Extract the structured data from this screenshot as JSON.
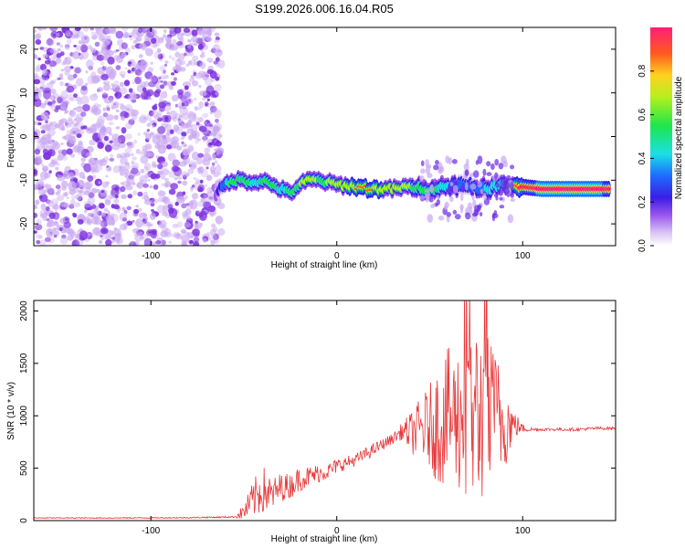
{
  "title": "S199.2026.006.16.04.R05",
  "colors": {
    "signal_line": "#e8383a",
    "speckle_dark": "#7b2fe0",
    "speckle_light": "#c9a8f2"
  },
  "colorbar": {
    "label": "Normalized spectral amplitude",
    "ticks": [
      "0.0",
      "0.2",
      "0.4",
      "0.6",
      "0.8"
    ],
    "tick_values": [
      0.0,
      0.2,
      0.4,
      0.6,
      0.8
    ],
    "range": [
      0,
      1
    ]
  },
  "chart_data": [
    {
      "type": "heatmap",
      "title": "S199.2026.006.16.04.R05",
      "xlabel": "Height of straight line (km)",
      "ylabel": "Frequency (Hz)",
      "xlim": [
        -163,
        150
      ],
      "ylim": [
        -25,
        25
      ],
      "xticks": [
        -100,
        0,
        100
      ],
      "xtick_labels": [
        "-100",
        "0",
        "100"
      ],
      "yticks": [
        -20,
        -10,
        0,
        10,
        20
      ],
      "ytick_labels": [
        "-20",
        "-10",
        "0",
        "10",
        "20"
      ],
      "noise_region_x": [
        -163,
        -65
      ],
      "signal_track": {
        "x": [
          -65,
          -60,
          -55,
          -50,
          -45,
          -40,
          -35,
          -30,
          -25,
          -20,
          -15,
          -10,
          -5,
          0,
          10,
          20,
          30,
          40,
          50,
          60,
          70,
          80,
          90,
          100,
          110,
          120,
          130,
          140,
          147
        ],
        "frequency_hz": [
          -13,
          -11,
          -10,
          -10,
          -10.5,
          -10,
          -11,
          -12,
          -13,
          -11,
          -10,
          -10,
          -10.5,
          -11,
          -11.5,
          -12,
          -12,
          -11.5,
          -12,
          -11.5,
          -11,
          -12,
          -11,
          -11.5,
          -12,
          -12,
          -12,
          -12,
          -12
        ],
        "amplitude": [
          0.3,
          0.5,
          0.6,
          0.6,
          0.5,
          0.55,
          0.6,
          0.5,
          0.55,
          0.6,
          0.65,
          0.6,
          0.6,
          0.65,
          0.7,
          0.7,
          0.65,
          0.6,
          0.55,
          0.5,
          0.45,
          0.5,
          0.5,
          0.85,
          0.95,
          0.95,
          0.95,
          0.95,
          0.9
        ]
      }
    },
    {
      "type": "line",
      "title": "",
      "xlabel": "Height of straight line (km)",
      "ylabel": "SNR (10 * v/v)",
      "xlim": [
        -163,
        150
      ],
      "ylim": [
        0,
        2100
      ],
      "xticks": [
        -100,
        0,
        100
      ],
      "xtick_labels": [
        "-100",
        "0",
        "100"
      ],
      "yticks": [
        0,
        500,
        1000,
        1500,
        2000
      ],
      "ytick_labels": [
        "0",
        "500",
        "1000",
        "1500",
        "2000"
      ],
      "series": [
        {
          "name": "SNR",
          "x": [
            -163,
            -120,
            -80,
            -55,
            -50,
            -45,
            -40,
            -35,
            -30,
            -25,
            -20,
            -15,
            -10,
            -5,
            0,
            10,
            20,
            30,
            35,
            40,
            50,
            55,
            60,
            65,
            70,
            75,
            80,
            85,
            90,
            95,
            100,
            105,
            110,
            120,
            130,
            140,
            150
          ],
          "values": [
            25,
            25,
            28,
            35,
            80,
            200,
            300,
            240,
            320,
            330,
            400,
            420,
            450,
            470,
            520,
            580,
            680,
            780,
            850,
            840,
            900,
            920,
            1000,
            980,
            1000,
            1000,
            1000,
            950,
            950,
            920,
            880,
            870,
            870,
            870,
            870,
            880,
            880
          ],
          "spread": [
            5,
            5,
            6,
            8,
            80,
            180,
            240,
            160,
            140,
            120,
            120,
            100,
            90,
            80,
            70,
            60,
            60,
            50,
            80,
            200,
            400,
            600,
            650,
            700,
            800,
            900,
            850,
            700,
            500,
            150,
            40,
            20,
            15,
            15,
            15,
            15,
            15
          ]
        }
      ]
    }
  ]
}
